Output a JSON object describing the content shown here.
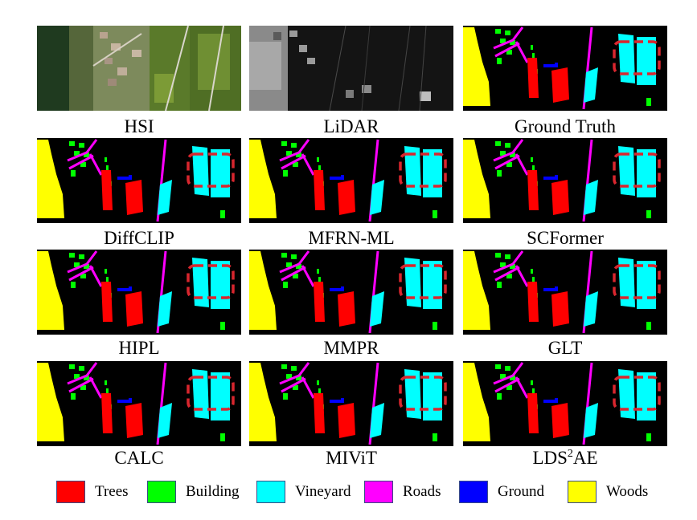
{
  "panels": [
    {
      "kind": "hsi",
      "caption": "HSI"
    },
    {
      "kind": "lidar",
      "caption": "LiDAR"
    },
    {
      "kind": "map",
      "caption": "Ground Truth"
    },
    {
      "kind": "map",
      "caption": "DiffCLIP"
    },
    {
      "kind": "map",
      "caption": "MFRN-ML"
    },
    {
      "kind": "map",
      "caption": "SCFormer"
    },
    {
      "kind": "map",
      "caption": "HIPL"
    },
    {
      "kind": "map",
      "caption": "MMPR"
    },
    {
      "kind": "map",
      "caption": "GLT"
    },
    {
      "kind": "map",
      "caption": "CALC"
    },
    {
      "kind": "map",
      "caption": "MIViT"
    },
    {
      "kind": "map",
      "caption": "LDS",
      "caption_sup": "2",
      "caption_tail": "AE"
    }
  ],
  "legend": [
    {
      "label": "Trees",
      "color": "#ff0000"
    },
    {
      "label": "Building",
      "color": "#00ff00"
    },
    {
      "label": "Vineyard",
      "color": "#00ffff"
    },
    {
      "label": "Roads",
      "color": "#ff00ff"
    },
    {
      "label": "Ground",
      "color": "#0000ff"
    },
    {
      "label": "Woods",
      "color": "#ffff00"
    }
  ],
  "highlight_color": "#d9262e"
}
